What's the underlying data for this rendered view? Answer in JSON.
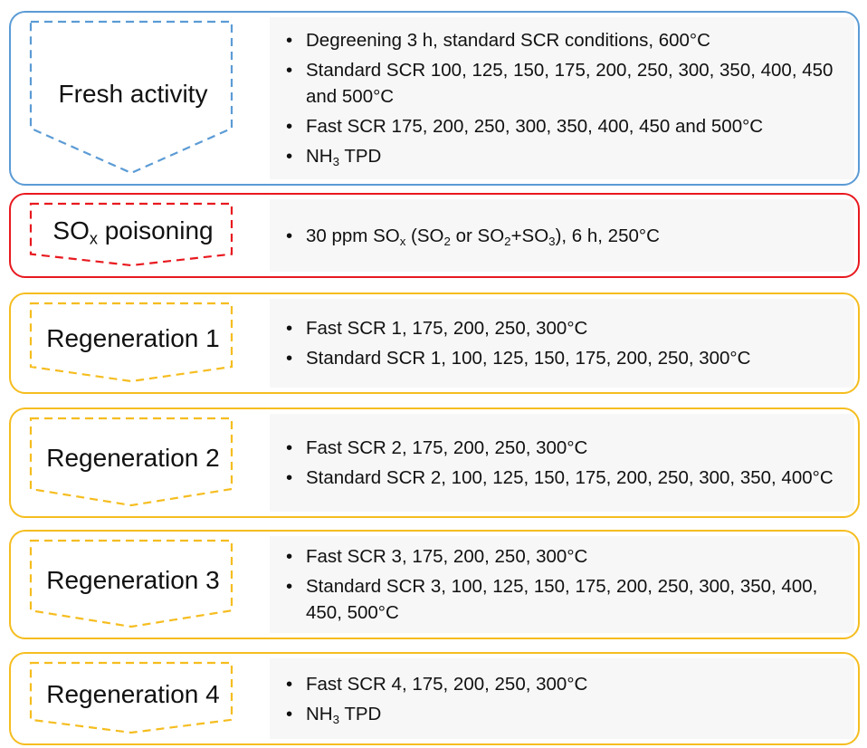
{
  "stages": [
    {
      "label": [
        {
          "t": "Fresh activity"
        }
      ],
      "items": [
        [
          {
            "t": "Degreening 3 h, standard SCR conditions, 600°C"
          }
        ],
        [
          {
            "t": "Standard SCR 100, 125, 150, 175, 200, 250, 300, 350, 400, 450 and 500°C"
          }
        ],
        [
          {
            "t": "Fast SCR 175, 200, 250, 300, 350, 400, 450 and 500°C"
          }
        ],
        [
          {
            "t": "NH"
          },
          {
            "sub": "3"
          },
          {
            "t": " TPD"
          }
        ]
      ]
    },
    {
      "label": [
        {
          "t": "SO"
        },
        {
          "sub": "x"
        },
        {
          "t": " poisoning"
        }
      ],
      "items": [
        [
          {
            "t": "30 ppm SO"
          },
          {
            "sub": "x"
          },
          {
            "t": " (SO"
          },
          {
            "sub": "2"
          },
          {
            "t": " or SO"
          },
          {
            "sub": "2"
          },
          {
            "t": "+SO"
          },
          {
            "sub": "3"
          },
          {
            "t": "), 6 h, 250°C"
          }
        ]
      ]
    },
    {
      "label": [
        {
          "t": "Regeneration 1"
        }
      ],
      "items": [
        [
          {
            "t": "Fast SCR 1, 175, 200, 250, 300°C"
          }
        ],
        [
          {
            "t": "Standard SCR 1, 100, 125, 150, 175, 200, 250, 300°C"
          }
        ]
      ]
    },
    {
      "label": [
        {
          "t": "Regeneration 2"
        }
      ],
      "items": [
        [
          {
            "t": "Fast SCR 2, 175, 200, 250, 300°C"
          }
        ],
        [
          {
            "t": "Standard SCR 2, 100, 125, 150, 175, 200, 250, 300, 350, 400°C"
          }
        ]
      ]
    },
    {
      "label": [
        {
          "t": "Regeneration 3"
        }
      ],
      "items": [
        [
          {
            "t": "Fast SCR 3, 175, 200, 250, 300°C"
          }
        ],
        [
          {
            "t": "Standard SCR 3, 100, 125, 150, 175, 200, 250, 300, 350, 400, 450, 500°C"
          }
        ]
      ]
    },
    {
      "label": [
        {
          "t": "Regeneration 4"
        }
      ],
      "items": [
        [
          {
            "t": "Fast SCR 4, 175, 200, 250, 300°C"
          }
        ],
        [
          {
            "t": "NH"
          },
          {
            "sub": "3"
          },
          {
            "t": " TPD"
          }
        ]
      ]
    }
  ]
}
